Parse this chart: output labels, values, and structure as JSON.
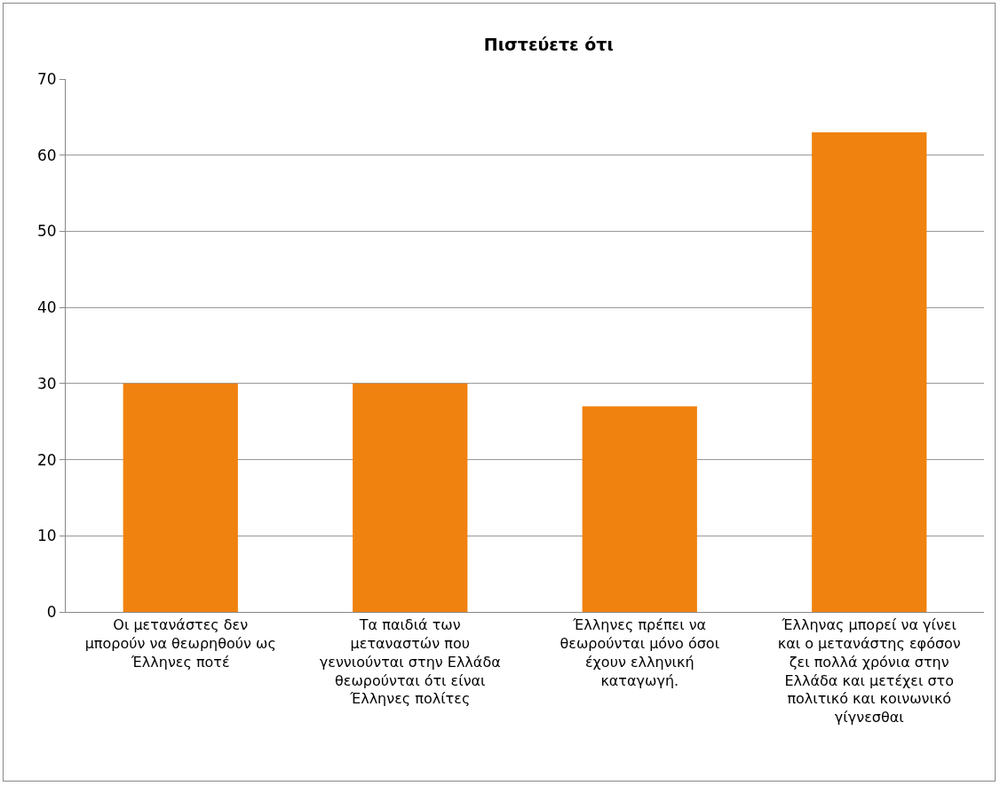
{
  "chart_data": {
    "type": "bar",
    "title": "Πιστεύετε ότι",
    "categories": [
      "Οι μετανάστες δεν μπορούν να θεωρηθούν ως Έλληνες ποτέ",
      "Τα παιδιά των μεταναστών που γεννιούνται στην Ελλάδα θεωρούνται ότι είναι Έλληνες πολίτες",
      "Έλληνες πρέπει να θεωρούνται μόνο όσοι έχουν ελληνική καταγωγή.",
      "Έλληνας μπορεί να γίνει και ο μετανάστης εφόσον ζει πολλά χρόνια στην Ελλάδα και μετέχει στο πολιτικό και κοινωνικό γίγνεσθαι"
    ],
    "values": [
      30,
      30,
      27,
      63
    ],
    "color": "#f0820f",
    "ylim": [
      0,
      70
    ],
    "yticks": [
      0,
      10,
      20,
      30,
      40,
      50,
      60,
      70
    ],
    "grid": "y"
  }
}
